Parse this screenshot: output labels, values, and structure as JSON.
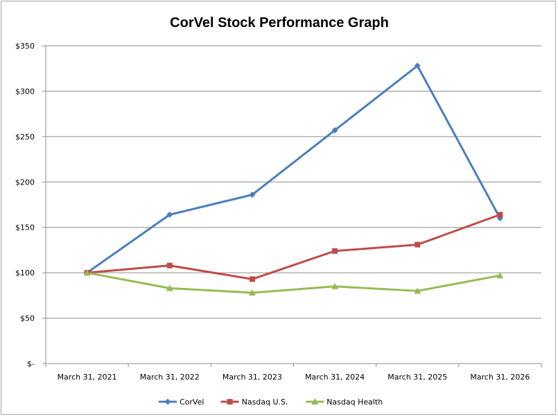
{
  "chart_data": {
    "type": "line",
    "title": "CorVel Stock Performance Graph",
    "xlabel": "",
    "ylabel": "",
    "categories": [
      "March 31, 2021",
      "March 31, 2022",
      "March 31, 2023",
      "March 31, 2024",
      "March 31, 2025",
      "March 31, 2026"
    ],
    "ylim": [
      0,
      350
    ],
    "yticks": [
      0,
      50,
      100,
      150,
      200,
      250,
      300,
      350
    ],
    "ytick_labels": [
      "$-",
      "$50",
      "$100",
      "$150",
      "$200",
      "$250",
      "$300",
      "$350"
    ],
    "grid": true,
    "legend_position": "bottom",
    "series": [
      {
        "name": "CorVel",
        "color": "#4a7ebb",
        "marker": "diamond",
        "values": [
          100,
          164,
          186,
          257,
          328,
          160
        ]
      },
      {
        "name": "Nasdaq U.S.",
        "color": "#be4b48",
        "marker": "square",
        "values": [
          100,
          108,
          93,
          124,
          131,
          164
        ]
      },
      {
        "name": "Nasdaq Health",
        "color": "#98b954",
        "marker": "triangle",
        "values": [
          100,
          83,
          78,
          85,
          80,
          97
        ]
      }
    ]
  }
}
